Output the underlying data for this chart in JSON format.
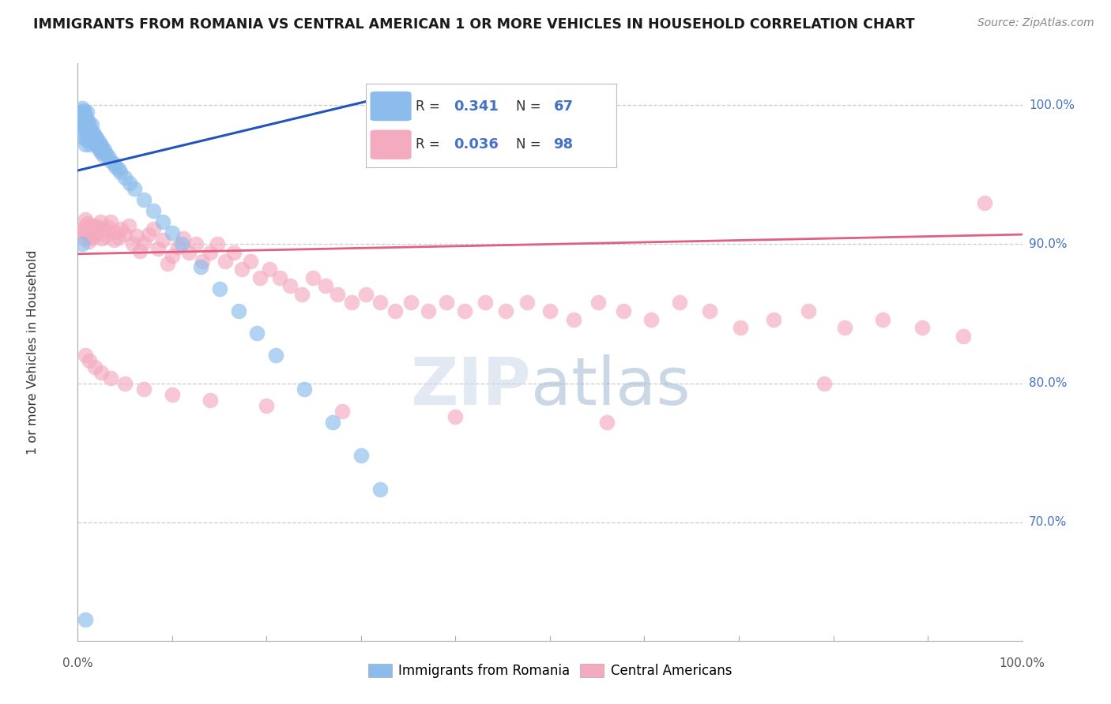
{
  "title": "IMMIGRANTS FROM ROMANIA VS CENTRAL AMERICAN 1 OR MORE VEHICLES IN HOUSEHOLD CORRELATION CHART",
  "source_text": "Source: ZipAtlas.com",
  "ylabel": "1 or more Vehicles in Household",
  "xlim": [
    0.0,
    1.0
  ],
  "ylim": [
    0.615,
    1.03
  ],
  "yticks": [
    0.7,
    0.8,
    0.9,
    1.0
  ],
  "ytick_labels": [
    "70.0%",
    "80.0%",
    "90.0%",
    "100.0%"
  ],
  "romania_R": 0.341,
  "romania_N": 67,
  "central_R": 0.036,
  "central_N": 98,
  "romania_color": "#8BBCEC",
  "central_color": "#F4AABF",
  "romania_line_color": "#2255BB",
  "central_line_color": "#E06080",
  "background_color": "#ffffff",
  "grid_color": "#cccccc",
  "watermark_zip_color": "#ccd8e8",
  "watermark_atlas_color": "#a0b8d0",
  "right_label_color": "#4472C4",
  "romania_scatter_x": [
    0.003,
    0.004,
    0.004,
    0.005,
    0.005,
    0.005,
    0.006,
    0.006,
    0.007,
    0.007,
    0.007,
    0.008,
    0.008,
    0.008,
    0.009,
    0.009,
    0.01,
    0.01,
    0.01,
    0.011,
    0.011,
    0.012,
    0.012,
    0.013,
    0.013,
    0.014,
    0.015,
    0.015,
    0.016,
    0.017,
    0.018,
    0.019,
    0.02,
    0.021,
    0.022,
    0.023,
    0.024,
    0.025,
    0.026,
    0.027,
    0.028,
    0.03,
    0.032,
    0.035,
    0.038,
    0.04,
    0.043,
    0.045,
    0.05,
    0.055,
    0.06,
    0.07,
    0.08,
    0.09,
    0.1,
    0.11,
    0.13,
    0.15,
    0.17,
    0.19,
    0.21,
    0.24,
    0.27,
    0.3,
    0.32,
    0.005,
    0.008
  ],
  "romania_scatter_y": [
    0.995,
    0.99,
    0.985,
    0.998,
    0.992,
    0.98,
    0.996,
    0.988,
    0.994,
    0.986,
    0.976,
    0.992,
    0.984,
    0.972,
    0.99,
    0.982,
    0.995,
    0.987,
    0.975,
    0.988,
    0.978,
    0.985,
    0.975,
    0.982,
    0.972,
    0.978,
    0.986,
    0.976,
    0.98,
    0.974,
    0.978,
    0.972,
    0.976,
    0.97,
    0.974,
    0.968,
    0.972,
    0.966,
    0.97,
    0.964,
    0.968,
    0.965,
    0.963,
    0.96,
    0.958,
    0.956,
    0.954,
    0.952,
    0.948,
    0.944,
    0.94,
    0.932,
    0.924,
    0.916,
    0.908,
    0.9,
    0.884,
    0.868,
    0.852,
    0.836,
    0.82,
    0.796,
    0.772,
    0.748,
    0.724,
    0.9,
    0.63
  ],
  "central_scatter_x": [
    0.005,
    0.006,
    0.007,
    0.008,
    0.009,
    0.01,
    0.011,
    0.012,
    0.013,
    0.014,
    0.015,
    0.016,
    0.017,
    0.018,
    0.019,
    0.02,
    0.022,
    0.024,
    0.026,
    0.028,
    0.03,
    0.032,
    0.035,
    0.038,
    0.04,
    0.043,
    0.046,
    0.05,
    0.054,
    0.058,
    0.062,
    0.066,
    0.07,
    0.075,
    0.08,
    0.085,
    0.09,
    0.095,
    0.1,
    0.106,
    0.112,
    0.118,
    0.125,
    0.132,
    0.14,
    0.148,
    0.156,
    0.165,
    0.174,
    0.183,
    0.193,
    0.203,
    0.214,
    0.225,
    0.237,
    0.249,
    0.262,
    0.275,
    0.29,
    0.305,
    0.32,
    0.336,
    0.353,
    0.371,
    0.39,
    0.41,
    0.431,
    0.453,
    0.476,
    0.5,
    0.525,
    0.551,
    0.578,
    0.607,
    0.637,
    0.669,
    0.702,
    0.737,
    0.774,
    0.812,
    0.852,
    0.894,
    0.938,
    0.96,
    0.008,
    0.012,
    0.018,
    0.025,
    0.035,
    0.05,
    0.07,
    0.1,
    0.14,
    0.2,
    0.28,
    0.4,
    0.56,
    0.79
  ],
  "central_scatter_y": [
    0.91,
    0.905,
    0.912,
    0.918,
    0.908,
    0.915,
    0.902,
    0.91,
    0.906,
    0.913,
    0.909,
    0.905,
    0.911,
    0.907,
    0.913,
    0.908,
    0.912,
    0.916,
    0.904,
    0.91,
    0.906,
    0.912,
    0.916,
    0.903,
    0.909,
    0.905,
    0.911,
    0.907,
    0.913,
    0.9,
    0.906,
    0.895,
    0.901,
    0.907,
    0.911,
    0.897,
    0.903,
    0.886,
    0.892,
    0.898,
    0.904,
    0.894,
    0.9,
    0.888,
    0.894,
    0.9,
    0.888,
    0.894,
    0.882,
    0.888,
    0.876,
    0.882,
    0.876,
    0.87,
    0.864,
    0.876,
    0.87,
    0.864,
    0.858,
    0.864,
    0.858,
    0.852,
    0.858,
    0.852,
    0.858,
    0.852,
    0.858,
    0.852,
    0.858,
    0.852,
    0.846,
    0.858,
    0.852,
    0.846,
    0.858,
    0.852,
    0.84,
    0.846,
    0.852,
    0.84,
    0.846,
    0.84,
    0.834,
    0.93,
    0.82,
    0.816,
    0.812,
    0.808,
    0.804,
    0.8,
    0.796,
    0.792,
    0.788,
    0.784,
    0.78,
    0.776,
    0.772,
    0.8
  ],
  "romania_line_x": [
    0.0,
    0.32
  ],
  "romania_line_y": [
    0.953,
    1.005
  ],
  "central_line_x": [
    0.0,
    1.0
  ],
  "central_line_y": [
    0.893,
    0.907
  ]
}
